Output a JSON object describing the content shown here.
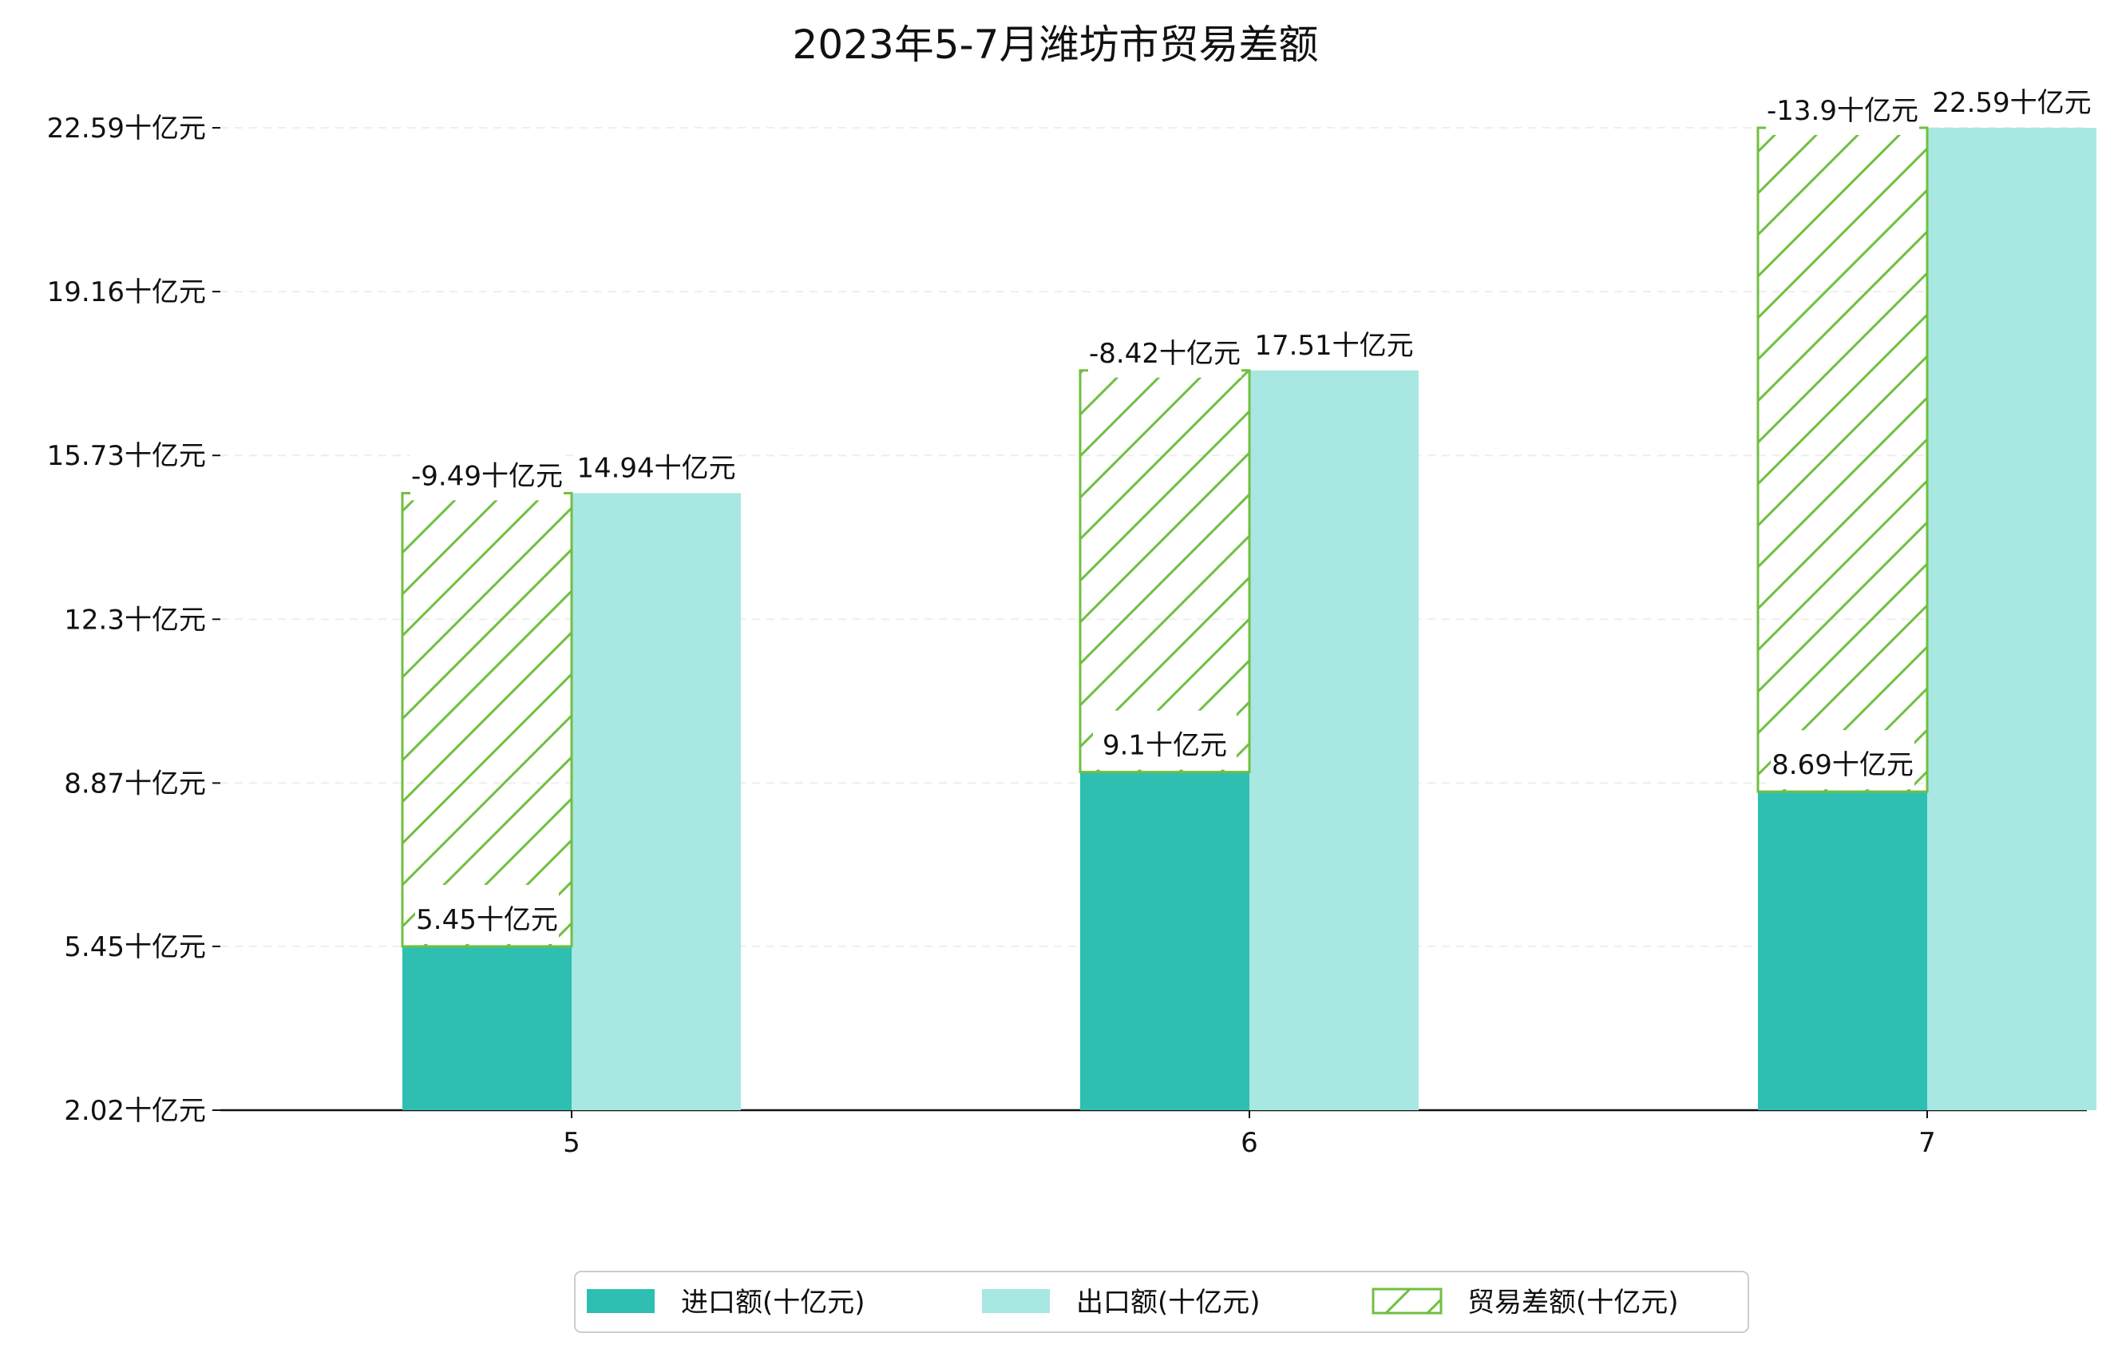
{
  "chart_data": {
    "type": "bar",
    "title": "2023年5-7月潍坊市贸易差额",
    "categories": [
      "5",
      "6",
      "7"
    ],
    "unit": "十亿元",
    "y_ticks": [
      "2.02十亿元",
      "5.45十亿元",
      "8.87十亿元",
      "12.3十亿元",
      "15.73十亿元",
      "19.16十亿元",
      "22.59十亿元"
    ],
    "ylim": [
      2.02,
      22.59
    ],
    "grid": "horizontal dashed",
    "legend_position": "bottom",
    "series": [
      {
        "name": "进口额(十亿元)",
        "values": [
          5.45,
          9.1,
          8.69
        ],
        "labels": [
          "5.45十亿元",
          "9.1十亿元",
          "8.69十亿元"
        ]
      },
      {
        "name": "出口额(十亿元)",
        "values": [
          14.94,
          17.51,
          22.59
        ],
        "labels": [
          "14.94十亿元",
          "17.51十亿元",
          "22.59十亿元"
        ]
      },
      {
        "name": "贸易差额(十亿元)",
        "values": [
          -9.49,
          -8.42,
          -13.9
        ],
        "labels": [
          "-9.49十亿元",
          "-8.42十亿元",
          "-13.9十亿元"
        ]
      }
    ],
    "colors": {
      "import": "#2ebfb2",
      "export": "#a9e7e2",
      "balance": "#70bf41"
    }
  }
}
